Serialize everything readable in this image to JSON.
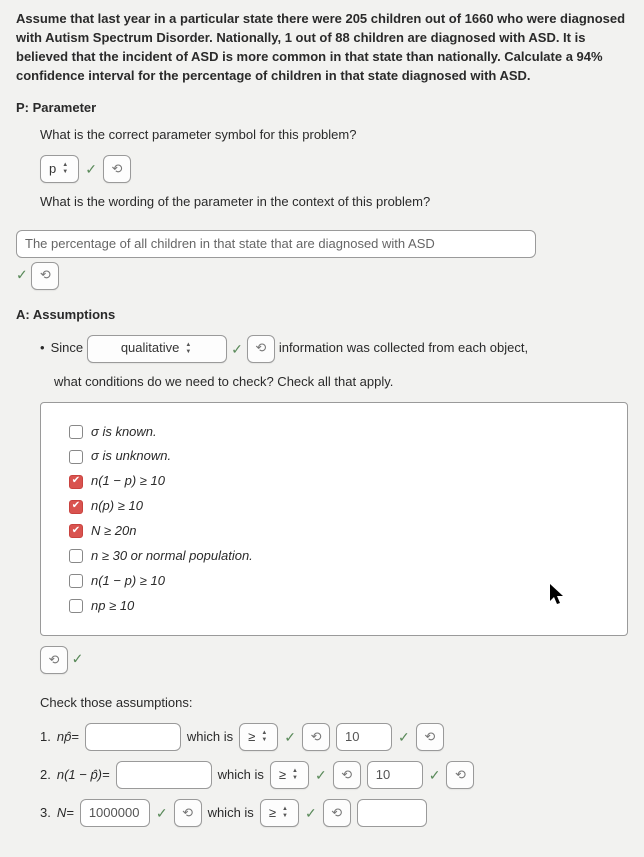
{
  "intro": "Assume that last year in a particular state there were 205 children out of 1660 who were diagnosed with Autism Spectrum Disorder. Nationally, 1 out of 88 children are diagnosed with ASD. It is believed that the incident of ASD is more common in that state than nationally. Calculate a 94% confidence interval for the percentage of children in that state diagnosed with ASD.",
  "parameter": {
    "heading": "P: Parameter",
    "q1": "What is the correct parameter symbol for this problem?",
    "symbol": "p",
    "q2": "What is the wording of the parameter in the context of this problem?",
    "answer": "The percentage of all children in that state that are diagnosed with ASD"
  },
  "assumptions": {
    "heading": "A: Assumptions",
    "since": "Since",
    "select_value": "qualitative",
    "tail": "information was collected from each object,",
    "q": "what conditions do we need to check?  Check all that apply.",
    "options": [
      {
        "checked": false,
        "label_html": "σ is known."
      },
      {
        "checked": false,
        "label_html": "σ is unknown."
      },
      {
        "checked": true,
        "label_html": "n(1 − p) ≥ 10"
      },
      {
        "checked": true,
        "label_html": "n(p) ≥ 10"
      },
      {
        "checked": true,
        "label_html": "N ≥ 20n"
      },
      {
        "checked": false,
        "label_html": "n ≥ 30 or normal population."
      },
      {
        "checked": false,
        "label_html": "n(1 − p) ≥ 10"
      },
      {
        "checked": false,
        "label_html": "np ≥ 10"
      }
    ],
    "check_heading": "Check those assumptions:",
    "rows": {
      "r1": {
        "num": "1.",
        "lhs": "np̂=",
        "which": "which is",
        "op": "≥",
        "rhs": "10"
      },
      "r2": {
        "num": "2.",
        "lhs": "n(1 − p̂)=",
        "which": "which is",
        "op": "≥",
        "rhs": "10"
      },
      "r3": {
        "num": "3.",
        "lhs": "N=",
        "val": "1000000",
        "which": "which is",
        "op": "≥"
      }
    }
  },
  "glyphs": {
    "retry": "⟲",
    "check": "✓",
    "check2": "✔"
  }
}
